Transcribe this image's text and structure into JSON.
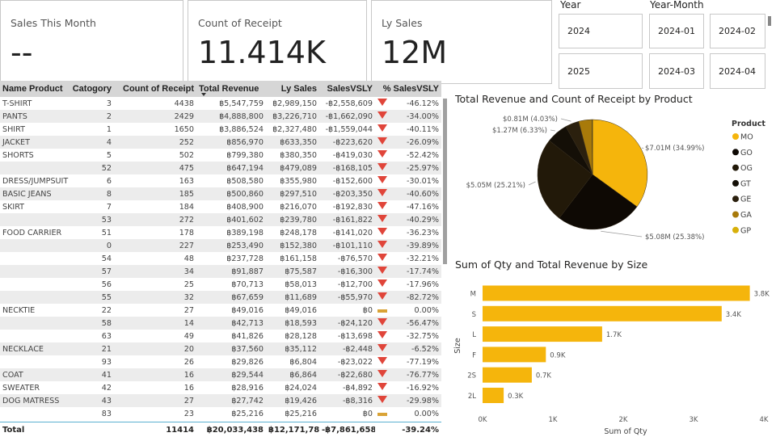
{
  "cards": [
    {
      "label": "Sales This Month",
      "value": "--"
    },
    {
      "label": "Count of Receipt",
      "value": "11.414K"
    },
    {
      "label": "Ly Sales",
      "value": "12M"
    }
  ],
  "slicers": {
    "year": {
      "label": "Year",
      "options": [
        "2024",
        "2025"
      ]
    },
    "year_month": {
      "label": "Year-Month",
      "options": [
        "2024-01",
        "2024-02",
        "2024-03",
        "2024-04"
      ]
    }
  },
  "table": {
    "columns": [
      "Name Product",
      "Catogory",
      "Count of Receipt",
      "Total Revenue",
      "Ly Sales",
      "SalesVSLY",
      "% SalesVSLY"
    ],
    "sorted_column": "Total Revenue",
    "rows": [
      [
        "T-SHIRT",
        "3",
        "4438",
        "฿5,547,759",
        "฿2,989,150",
        "-฿2,558,609",
        "down",
        "-46.12%"
      ],
      [
        "PANTS",
        "2",
        "2429",
        "฿4,888,800",
        "฿3,226,710",
        "-฿1,662,090",
        "down",
        "-34.00%"
      ],
      [
        "SHIRT",
        "1",
        "1650",
        "฿3,886,524",
        "฿2,327,480",
        "-฿1,559,044",
        "down",
        "-40.11%"
      ],
      [
        "JACKET",
        "4",
        "252",
        "฿856,970",
        "฿633,350",
        "-฿223,620",
        "down",
        "-26.09%"
      ],
      [
        "SHORTS",
        "5",
        "502",
        "฿799,380",
        "฿380,350",
        "-฿419,030",
        "down",
        "-52.42%"
      ],
      [
        "",
        "52",
        "475",
        "฿647,194",
        "฿479,089",
        "-฿168,105",
        "down",
        "-25.97%"
      ],
      [
        "DRESS/JUMPSUIT",
        "6",
        "163",
        "฿508,580",
        "฿355,980",
        "-฿152,600",
        "down",
        "-30.01%"
      ],
      [
        "BASIC JEANS",
        "8",
        "185",
        "฿500,860",
        "฿297,510",
        "-฿203,350",
        "down",
        "-40.60%"
      ],
      [
        "SKIRT",
        "7",
        "184",
        "฿408,900",
        "฿216,070",
        "-฿192,830",
        "down",
        "-47.16%"
      ],
      [
        "",
        "53",
        "272",
        "฿401,602",
        "฿239,780",
        "-฿161,822",
        "down",
        "-40.29%"
      ],
      [
        "FOOD CARRIER",
        "51",
        "178",
        "฿389,198",
        "฿248,178",
        "-฿141,020",
        "down",
        "-36.23%"
      ],
      [
        "",
        "0",
        "227",
        "฿253,490",
        "฿152,380",
        "-฿101,110",
        "down",
        "-39.89%"
      ],
      [
        "",
        "54",
        "48",
        "฿237,728",
        "฿161,158",
        "-฿76,570",
        "down",
        "-32.21%"
      ],
      [
        "",
        "57",
        "34",
        "฿91,887",
        "฿75,587",
        "-฿16,300",
        "down",
        "-17.74%"
      ],
      [
        "",
        "56",
        "25",
        "฿70,713",
        "฿58,013",
        "-฿12,700",
        "down",
        "-17.96%"
      ],
      [
        "",
        "55",
        "32",
        "฿67,659",
        "฿11,689",
        "-฿55,970",
        "down",
        "-82.72%"
      ],
      [
        "NECKTIE",
        "22",
        "27",
        "฿49,016",
        "฿49,016",
        "฿0",
        "flat",
        "0.00%"
      ],
      [
        "",
        "58",
        "14",
        "฿42,713",
        "฿18,593",
        "-฿24,120",
        "down",
        "-56.47%"
      ],
      [
        "",
        "63",
        "49",
        "฿41,826",
        "฿28,128",
        "-฿13,698",
        "down",
        "-32.75%"
      ],
      [
        "NECKLACE",
        "21",
        "20",
        "฿37,560",
        "฿35,112",
        "-฿2,448",
        "down",
        "-6.52%"
      ],
      [
        "",
        "93",
        "26",
        "฿29,826",
        "฿6,804",
        "-฿23,022",
        "down",
        "-77.19%"
      ],
      [
        "COAT",
        "41",
        "16",
        "฿29,544",
        "฿6,864",
        "-฿22,680",
        "down",
        "-76.77%"
      ],
      [
        "SWEATER",
        "42",
        "16",
        "฿28,916",
        "฿24,024",
        "-฿4,892",
        "down",
        "-16.92%"
      ],
      [
        "DOG MATRESS",
        "43",
        "27",
        "฿27,742",
        "฿19,426",
        "-฿8,316",
        "down",
        "-29.98%"
      ],
      [
        "",
        "83",
        "23",
        "฿25,216",
        "฿25,216",
        "฿0",
        "flat",
        "0.00%"
      ]
    ],
    "total": {
      "label": "Total",
      "count": "11414",
      "revenue": "฿20,033,438",
      "ly": "฿12,171,780",
      "vs": "-฿7,861,658",
      "pct": "-39.24%"
    }
  },
  "chart_data": [
    {
      "type": "pie",
      "title": "Total Revenue and Count of Receipt by Product",
      "legend_title": "Product",
      "legend_position": "right",
      "slices": [
        {
          "name": "MO",
          "value": 7.01,
          "percent": 34.99,
          "label": "$7.01M (34.99%)",
          "color": "#f5b50c"
        },
        {
          "name": "GO",
          "value": 5.08,
          "percent": 25.38,
          "label": "$5.08M (25.38%)",
          "color": "#0e0904"
        },
        {
          "name": "OG",
          "value": 5.05,
          "percent": 25.21,
          "label": "$5.05M (25.21%)",
          "color": "#221909"
        },
        {
          "name": "GT",
          "value": 1.27,
          "percent": 6.33,
          "label": "$1.27M (6.33%)",
          "color": "#140f07"
        },
        {
          "name": "GE",
          "value": 0.81,
          "percent": 4.03,
          "label": "$0.81M (4.03%)",
          "color": "#2b200e"
        },
        {
          "name": "GA",
          "value": 0.78,
          "percent": 3.9,
          "label": "",
          "color": "#a87a0a"
        },
        {
          "name": "GP",
          "value": 0.03,
          "percent": 0.16,
          "label": "",
          "color": "#d8b00a"
        }
      ]
    },
    {
      "type": "bar",
      "orientation": "horizontal",
      "title": "Sum of Qty and Total Revenue by Size",
      "xlabel": "Sum of Qty",
      "ylabel": "Size",
      "categories": [
        "M",
        "S",
        "L",
        "F",
        "2S",
        "2L"
      ],
      "values": [
        3800,
        3400,
        1700,
        900,
        700,
        300
      ],
      "data_labels": [
        "3.8K",
        "3.4K",
        "1.7K",
        "0.9K",
        "0.7K",
        "0.3K"
      ],
      "xlim": [
        0,
        4000
      ],
      "xticks": [
        "0K",
        "1K",
        "2K",
        "3K",
        "4K"
      ],
      "color": "#f5b50c",
      "grid": false
    }
  ]
}
